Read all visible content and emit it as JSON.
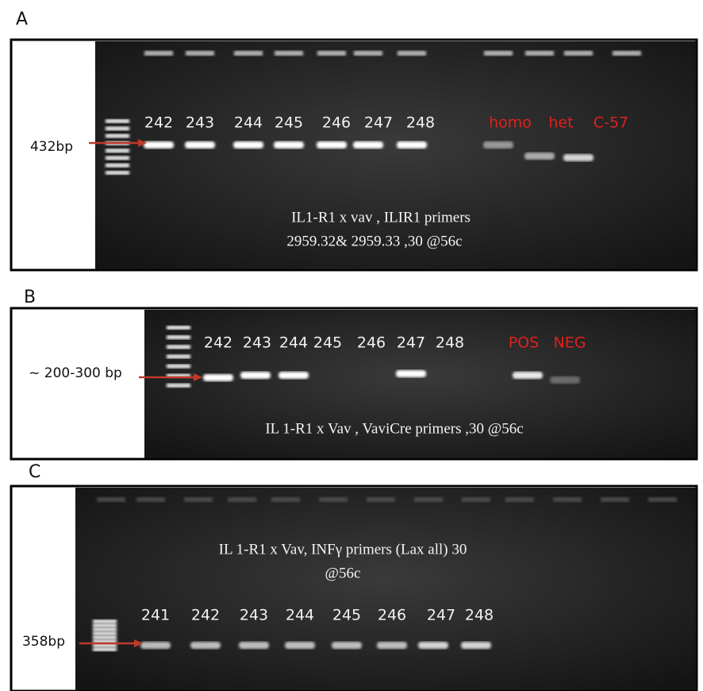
{
  "panels": [
    {
      "letter": "A",
      "size_label": "432bp",
      "lanes": [
        "242",
        "243",
        "244",
        "245",
        "246",
        "247",
        "248"
      ],
      "controls": [
        "homo",
        "het",
        "C-57"
      ],
      "caption": [
        "IL1-R1 x vav  , ILIR1 primers",
        "2959.32& 2959.33 ,30 @56c"
      ]
    },
    {
      "letter": "B",
      "size_label": "~ 200-300 bp",
      "lanes": [
        "242",
        "243",
        "244",
        "245",
        "246",
        "247",
        "248"
      ],
      "controls": [
        "POS",
        "NEG"
      ],
      "caption": [
        "IL 1-R1 x Vav , VaviCre primers ,30 @56c"
      ]
    },
    {
      "letter": "C",
      "size_label": "358bp",
      "lanes": [
        "241",
        "242",
        "243",
        "244",
        "245",
        "246",
        "247",
        "248"
      ],
      "caption": [
        "IL 1-R1 x Vav, INFγ primers (Lax all) 30",
        "@56c"
      ]
    }
  ]
}
